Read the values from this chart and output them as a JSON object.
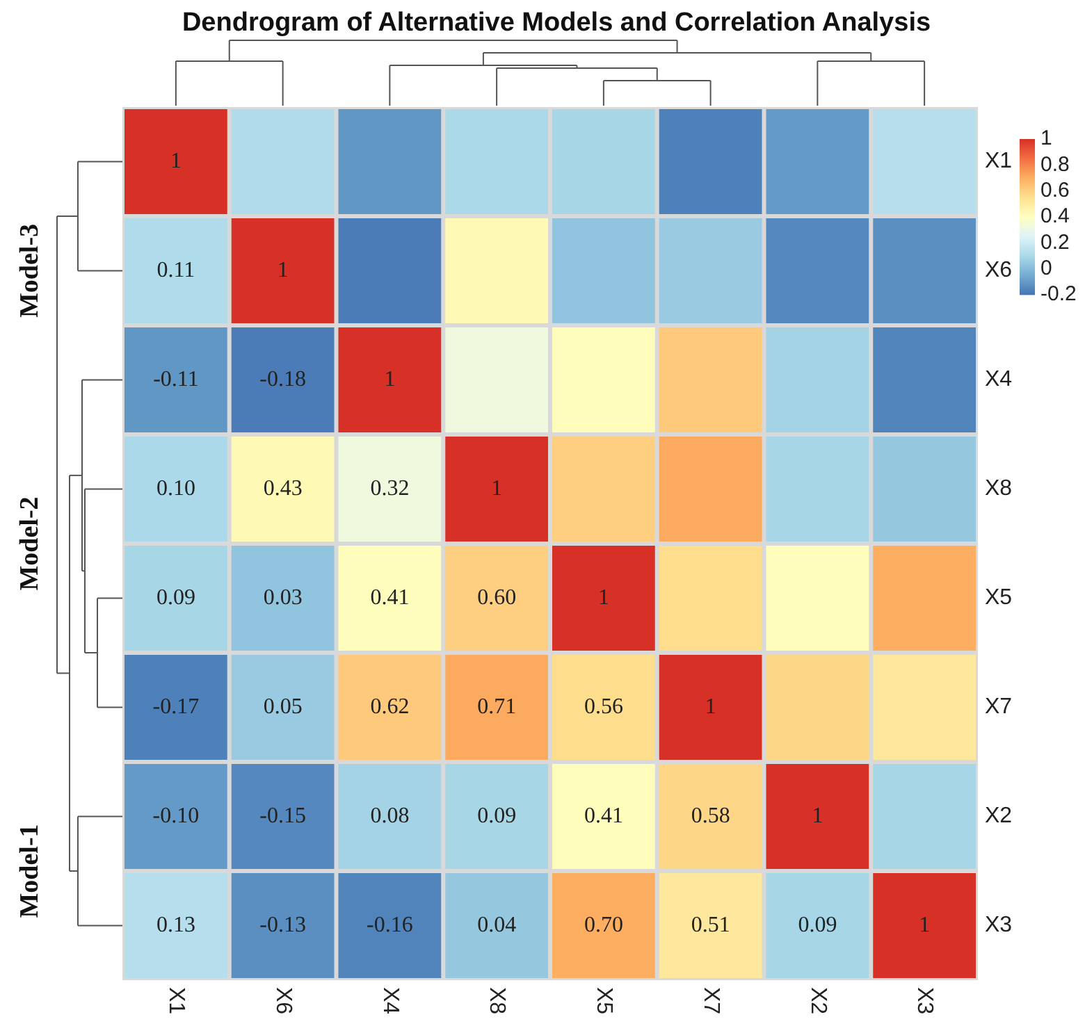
{
  "chart_data": {
    "type": "heatmap",
    "title": "Dendrogram of Alternative Models and Correlation Analysis",
    "categories": [
      "X1",
      "X6",
      "X4",
      "X8",
      "X5",
      "X7",
      "X2",
      "X3"
    ],
    "y_categories": [
      "X1",
      "X6",
      "X4",
      "X8",
      "X5",
      "X7",
      "X2",
      "X3"
    ],
    "cells": [
      [
        1,
        0.11,
        -0.11,
        0.1,
        0.09,
        -0.17,
        -0.1,
        0.13
      ],
      [
        0.11,
        1,
        -0.18,
        0.43,
        0.03,
        0.05,
        -0.15,
        -0.13
      ],
      [
        -0.11,
        -0.18,
        1,
        0.32,
        0.41,
        0.62,
        0.08,
        -0.16
      ],
      [
        0.1,
        0.43,
        0.32,
        1,
        0.6,
        0.71,
        0.09,
        0.04
      ],
      [
        0.09,
        0.03,
        0.41,
        0.6,
        1,
        0.56,
        0.41,
        0.7
      ],
      [
        -0.17,
        0.05,
        0.62,
        0.71,
        0.56,
        1,
        0.58,
        0.51
      ],
      [
        -0.1,
        -0.15,
        0.08,
        0.09,
        0.41,
        0.58,
        1,
        0.09
      ],
      [
        0.13,
        -0.13,
        -0.16,
        0.04,
        0.7,
        0.51,
        0.09,
        1
      ]
    ],
    "cell_labels": [
      [
        "1",
        null,
        null,
        null,
        null,
        null,
        null,
        null
      ],
      [
        "0.11",
        "1",
        null,
        null,
        null,
        null,
        null,
        null
      ],
      [
        "-0.11",
        "-0.18",
        "1",
        null,
        null,
        null,
        null,
        null
      ],
      [
        "0.10",
        "0.43",
        "0.32",
        "1",
        null,
        null,
        null,
        null
      ],
      [
        "0.09",
        "0.03",
        "0.41",
        "0.60",
        "1",
        null,
        null,
        null
      ],
      [
        "-0.17",
        "0.05",
        "0.62",
        "0.71",
        "0.56",
        "1",
        null,
        null
      ],
      [
        "-0.10",
        "-0.15",
        "0.08",
        "0.09",
        "0.41",
        "0.58",
        "1",
        null
      ],
      [
        "0.13",
        "-0.13",
        "-0.16",
        "0.04",
        "0.70",
        "0.51",
        "0.09",
        "1"
      ]
    ],
    "clim": [
      -0.2,
      1
    ],
    "cticks": [
      -0.2,
      0,
      0.2,
      0.4,
      0.6,
      0.8,
      1
    ],
    "annotations": [
      "Model-3",
      "Model-2",
      "Model-1"
    ]
  }
}
